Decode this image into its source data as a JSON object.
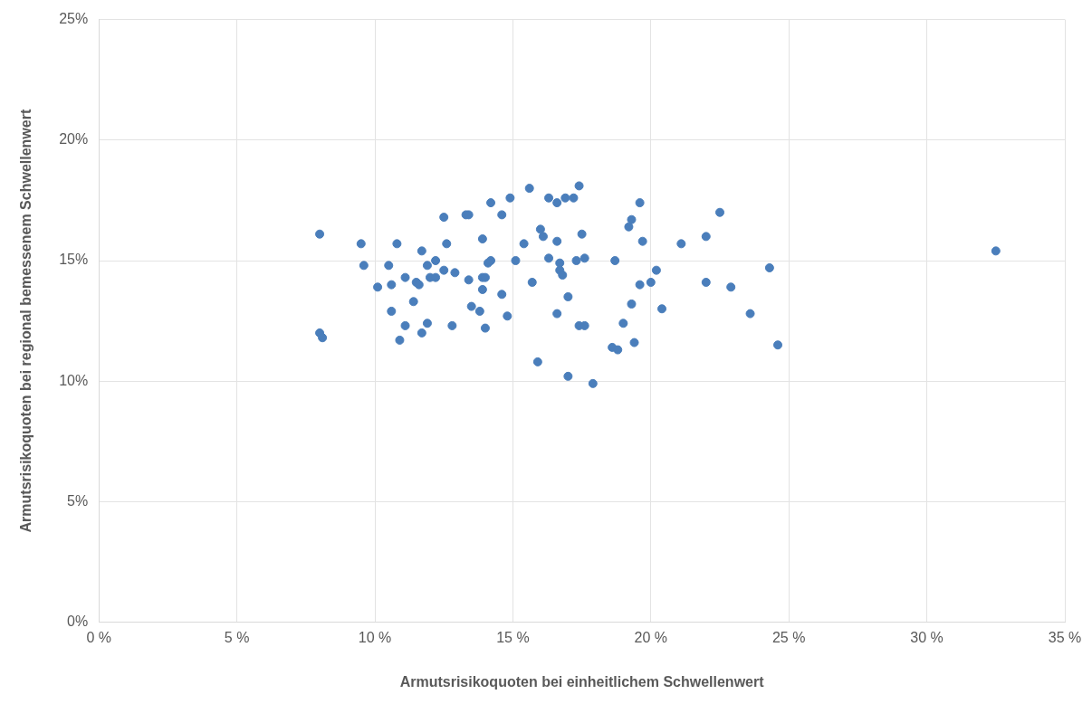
{
  "chart_data": {
    "type": "scatter",
    "xlabel": "Armutsrisikoquoten bei einheitlichem Schwellenwert",
    "ylabel": "Armutsrisikoquoten bei regional bemessenem Schwellenwert",
    "xlim": [
      0,
      35
    ],
    "ylim": [
      0,
      25
    ],
    "xticks": [
      {
        "value": 0,
        "label": "0 %"
      },
      {
        "value": 5,
        "label": "5 %"
      },
      {
        "value": 10,
        "label": "10 %"
      },
      {
        "value": 15,
        "label": "15 %"
      },
      {
        "value": 20,
        "label": "20 %"
      },
      {
        "value": 25,
        "label": "25 %"
      },
      {
        "value": 30,
        "label": "30 %"
      },
      {
        "value": 35,
        "label": "35 %"
      }
    ],
    "yticks": [
      {
        "value": 0,
        "label": "0%"
      },
      {
        "value": 5,
        "label": "5%"
      },
      {
        "value": 10,
        "label": "10%"
      },
      {
        "value": 15,
        "label": "15%"
      },
      {
        "value": 20,
        "label": "20%"
      },
      {
        "value": 25,
        "label": "25%"
      }
    ],
    "grid": true,
    "legend": false,
    "marker": "circle",
    "series": [
      {
        "color": "#4a7ebb",
        "x": [
          8.0,
          8.0,
          8.1,
          9.5,
          9.6,
          10.1,
          10.5,
          10.6,
          10.6,
          10.8,
          10.9,
          11.1,
          11.1,
          11.4,
          11.5,
          11.6,
          11.7,
          11.7,
          11.9,
          11.9,
          12.0,
          12.2,
          12.2,
          12.5,
          12.5,
          12.6,
          12.8,
          12.9,
          13.3,
          13.4,
          13.4,
          13.5,
          13.8,
          13.9,
          13.9,
          13.9,
          14.0,
          14.0,
          14.1,
          14.2,
          14.2,
          14.6,
          14.6,
          14.8,
          14.9,
          15.1,
          15.4,
          15.6,
          15.7,
          15.9,
          16.0,
          16.1,
          16.3,
          16.3,
          16.6,
          16.6,
          16.6,
          16.7,
          16.7,
          16.8,
          16.9,
          17.0,
          17.0,
          17.2,
          17.3,
          17.4,
          17.4,
          17.5,
          17.6,
          17.6,
          17.9,
          18.6,
          18.7,
          18.8,
          19.0,
          19.2,
          19.3,
          19.3,
          19.4,
          19.6,
          19.6,
          19.7,
          20.0,
          20.2,
          20.4,
          21.1,
          22.0,
          22.0,
          22.5,
          22.9,
          23.6,
          24.3,
          24.6,
          32.5
        ],
        "values": [
          16.1,
          12.0,
          11.8,
          15.7,
          14.8,
          13.9,
          14.8,
          14.0,
          12.9,
          15.7,
          11.7,
          14.3,
          12.3,
          13.3,
          14.1,
          14.0,
          12.0,
          15.4,
          14.8,
          12.4,
          14.3,
          15.0,
          14.3,
          16.8,
          14.6,
          15.7,
          12.3,
          14.5,
          16.9,
          16.9,
          14.2,
          13.1,
          12.9,
          15.9,
          13.8,
          14.3,
          14.3,
          12.2,
          14.9,
          15.0,
          17.4,
          16.9,
          13.6,
          12.7,
          17.6,
          15.0,
          15.7,
          18.0,
          14.1,
          10.8,
          16.3,
          16.0,
          17.6,
          15.1,
          17.4,
          15.8,
          12.8,
          14.9,
          14.6,
          14.4,
          17.6,
          13.5,
          10.2,
          17.6,
          15.0,
          18.1,
          12.3,
          16.1,
          12.3,
          15.1,
          9.9,
          11.4,
          15.0,
          11.3,
          12.4,
          16.4,
          16.7,
          13.2,
          11.6,
          17.4,
          14.0,
          15.8,
          14.1,
          14.6,
          13.0,
          15.7,
          16.0,
          14.1,
          17.0,
          13.9,
          12.8,
          14.7,
          11.5,
          15.4
        ]
      }
    ]
  }
}
